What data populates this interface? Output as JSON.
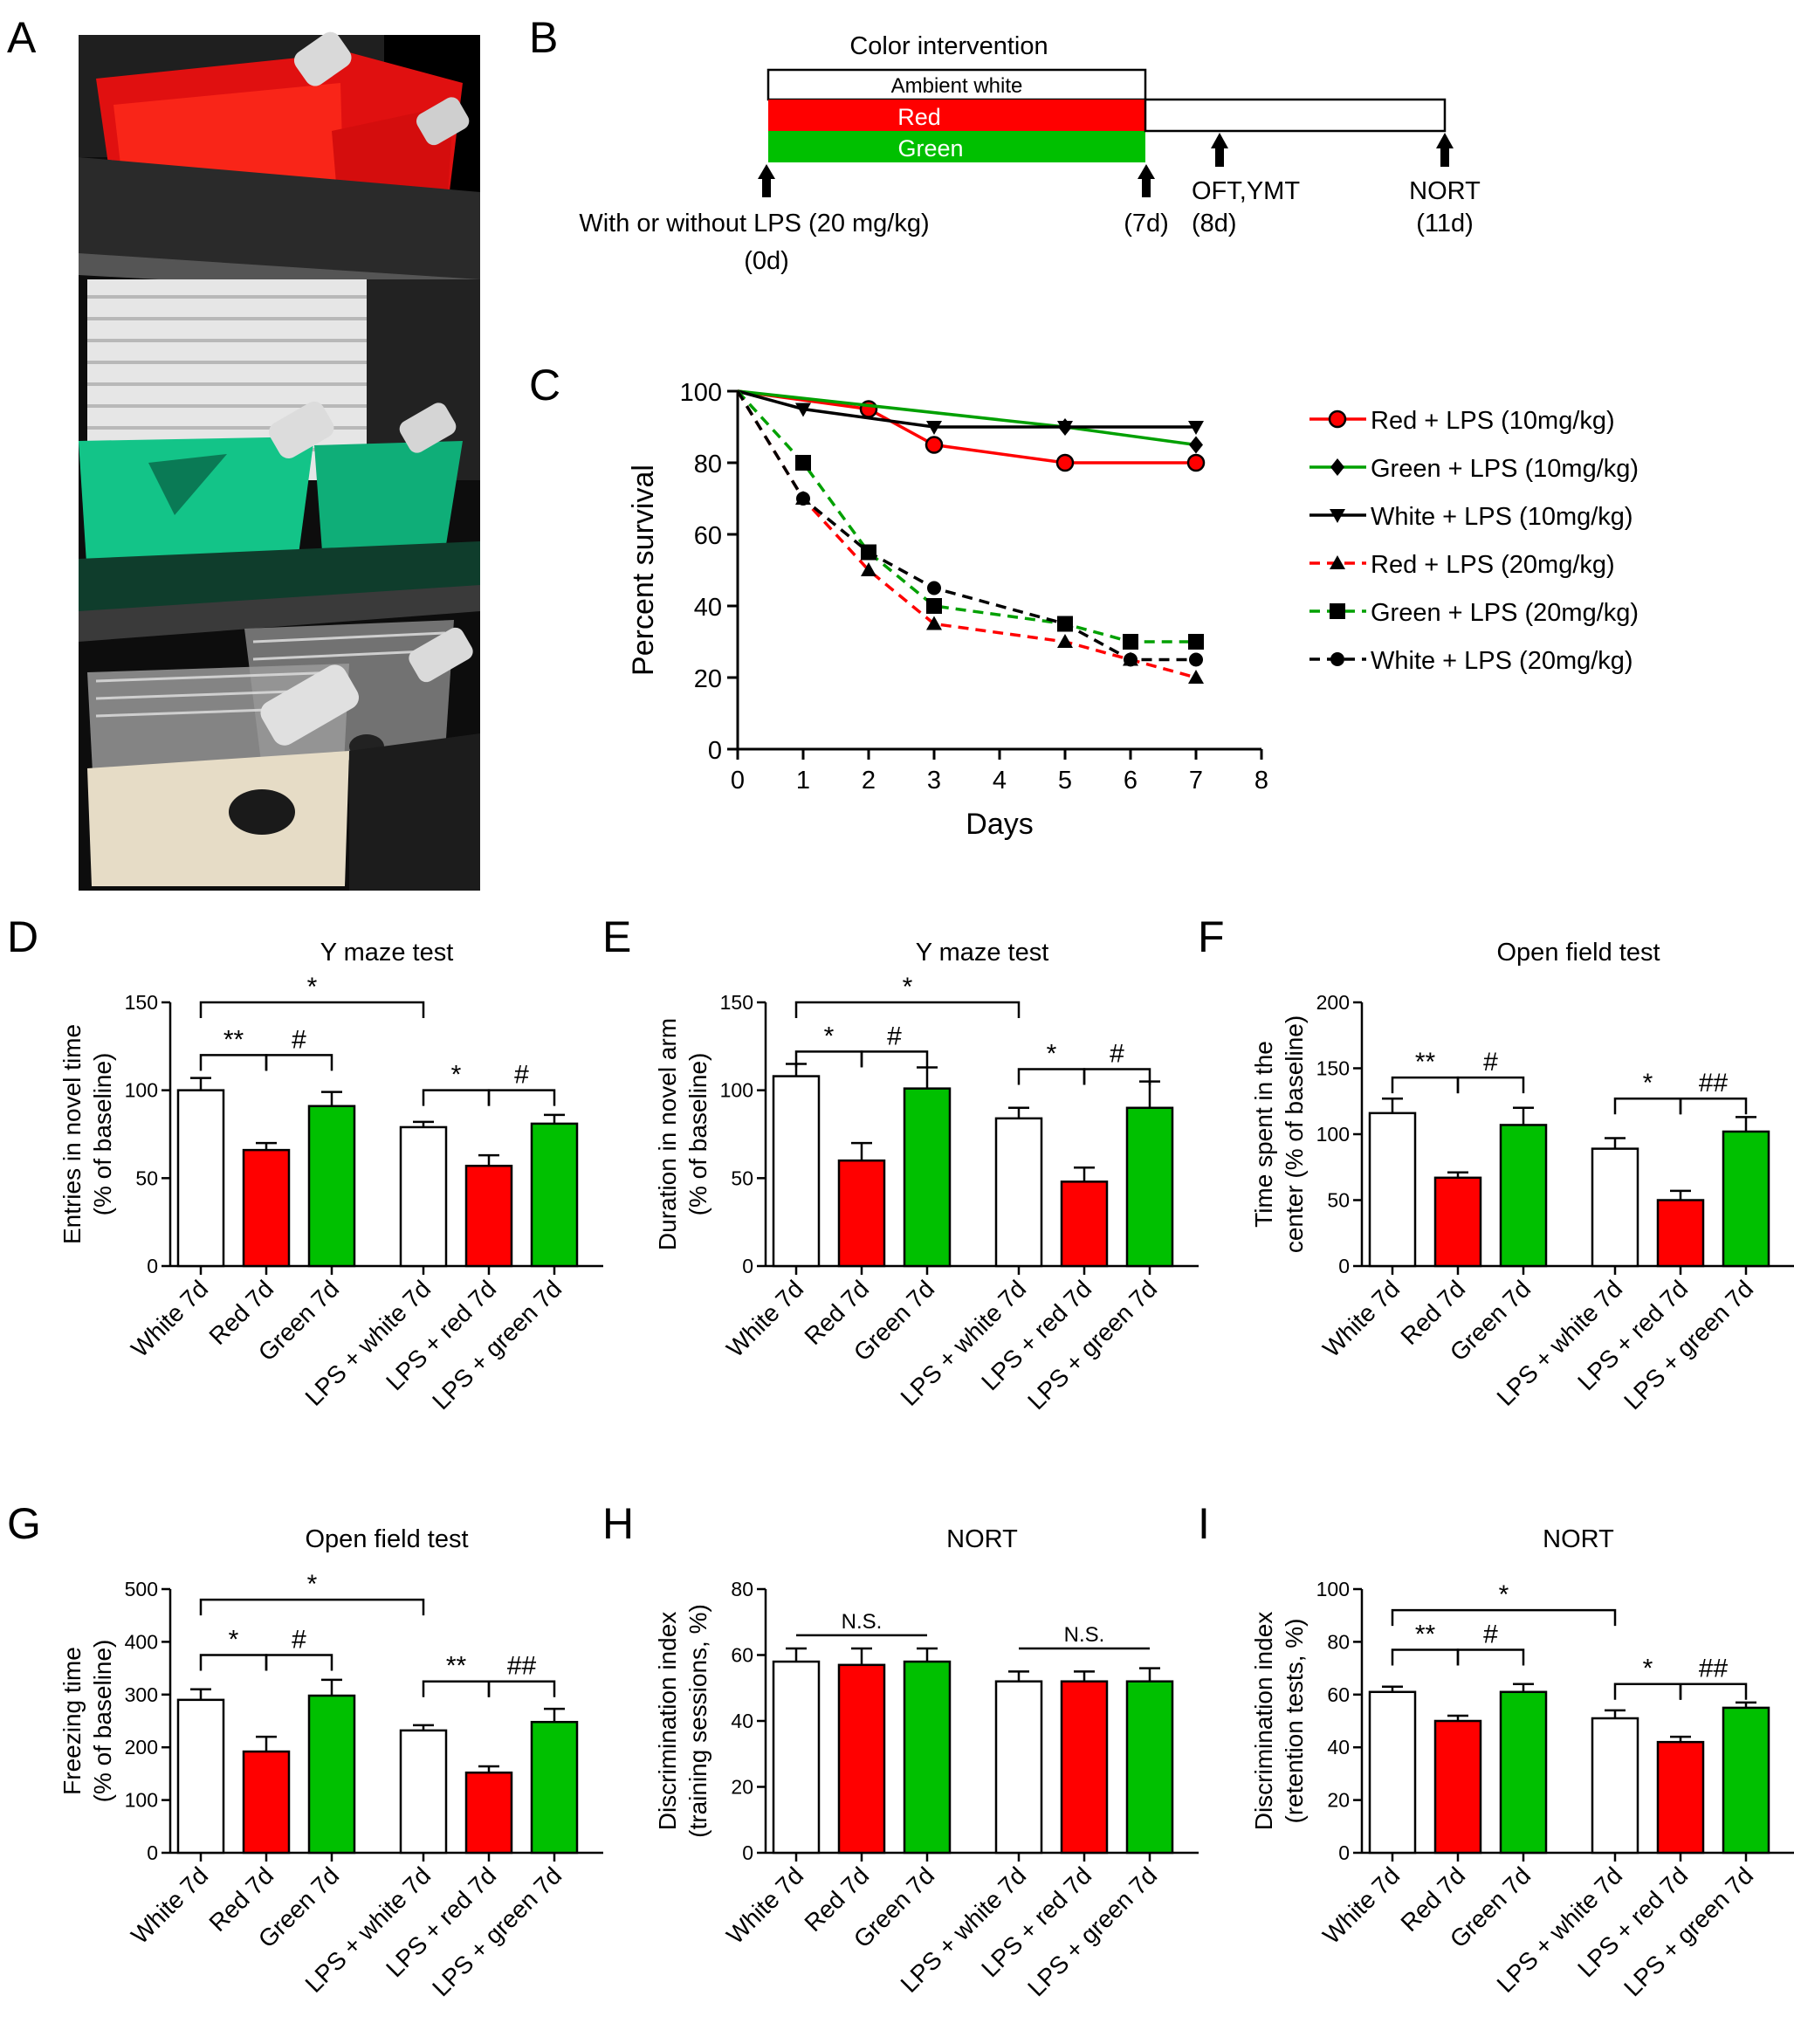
{
  "panel_letters": [
    "A",
    "B",
    "C",
    "D",
    "E",
    "F",
    "G",
    "H",
    "I"
  ],
  "colors": {
    "red": "#ff0000",
    "green": "#00c000",
    "white": "#ffffff",
    "black": "#000000",
    "photo_bg": "#1a1a1a"
  },
  "timeline": {
    "title": "Color intervention",
    "bars": [
      "Ambient white",
      "Red",
      "Green"
    ],
    "arrows": [
      {
        "label": "With or without LPS (20 mg/kg)",
        "day": "(0d)"
      },
      {
        "label": "",
        "day": "(7d)"
      },
      {
        "label": "OFT,YMT",
        "day": "(8d)"
      },
      {
        "label": "NORT",
        "day": "(11d)"
      }
    ]
  },
  "chart_data": [
    {
      "id": "C",
      "type": "line",
      "title": "",
      "xlabel": "Days",
      "ylabel": "Percent survival",
      "xlim": [
        0,
        8
      ],
      "ylim": [
        0,
        100
      ],
      "xticks": [
        "0",
        "1",
        "2",
        "3",
        "4",
        "5",
        "6",
        "7",
        "8"
      ],
      "yticks": [
        "0",
        "20",
        "40",
        "60",
        "80",
        "100"
      ],
      "legend_position": "right",
      "series": [
        {
          "name": "Red + LPS (10mg/kg)",
          "color": "#ff0000",
          "dash": false,
          "marker": "circle-red",
          "x": [
            0,
            2,
            3,
            5,
            7
          ],
          "y": [
            100,
            95,
            85,
            80,
            80
          ]
        },
        {
          "name": "Green + LPS (10mg/kg)",
          "color": "#00a000",
          "dash": false,
          "marker": "diamond",
          "x": [
            0,
            5,
            7
          ],
          "y": [
            100,
            90,
            85
          ]
        },
        {
          "name": "White + LPS (10mg/kg)",
          "color": "#000000",
          "dash": false,
          "marker": "triangle-down",
          "x": [
            0,
            1,
            3,
            5,
            7
          ],
          "y": [
            100,
            95,
            90,
            90,
            90
          ]
        },
        {
          "name": "Red + LPS (20mg/kg)",
          "color": "#ff0000",
          "dash": true,
          "marker": "triangle-up",
          "x": [
            0,
            1,
            2,
            3,
            5,
            6,
            7
          ],
          "y": [
            100,
            70,
            50,
            35,
            30,
            25,
            20
          ]
        },
        {
          "name": "Green + LPS (20mg/kg)",
          "color": "#00a000",
          "dash": true,
          "marker": "square",
          "x": [
            0,
            1,
            2,
            3,
            5,
            6,
            7
          ],
          "y": [
            100,
            80,
            55,
            40,
            35,
            30,
            30
          ]
        },
        {
          "name": "White + LPS (20mg/kg)",
          "color": "#000000",
          "dash": true,
          "marker": "circle",
          "x": [
            0,
            1,
            2,
            3,
            5,
            6,
            7
          ],
          "y": [
            100,
            70,
            55,
            45,
            35,
            25,
            25
          ]
        }
      ]
    },
    {
      "id": "D",
      "type": "bar",
      "title": "Y maze test",
      "ylabel": [
        "Entries in novel time",
        "(% of baseline)"
      ],
      "categories": [
        "White 7d",
        "Red 7d",
        "Green 7d",
        "LPS + white 7d",
        "LPS + red 7d",
        "LPS + green 7d"
      ],
      "values": [
        100,
        66,
        91,
        79,
        57,
        81
      ],
      "errors": [
        7,
        4,
        8,
        3,
        6,
        5
      ],
      "ylim": [
        0,
        150
      ],
      "yticks": [
        "0",
        "50",
        "100",
        "150"
      ],
      "annotations": [
        {
          "from": 0,
          "to": 3,
          "label": "*",
          "y": 150
        },
        {
          "from": 0,
          "to": 1,
          "label": "**",
          "y": 120
        },
        {
          "from": 1,
          "to": 2,
          "label": "#",
          "y": 120
        },
        {
          "from": 3,
          "to": 4,
          "label": "*",
          "y": 100
        },
        {
          "from": 4,
          "to": 5,
          "label": "#",
          "y": 100
        }
      ]
    },
    {
      "id": "E",
      "type": "bar",
      "title": "Y maze test",
      "ylabel": [
        "Duration in novel arm",
        "(% of baseline)"
      ],
      "categories": [
        "White 7d",
        "Red 7d",
        "Green 7d",
        "LPS + white 7d",
        "LPS + red 7d",
        "LPS + green 7d"
      ],
      "values": [
        108,
        60,
        101,
        84,
        48,
        90
      ],
      "errors": [
        7,
        10,
        12,
        6,
        8,
        15
      ],
      "ylim": [
        0,
        150
      ],
      "yticks": [
        "0",
        "50",
        "100",
        "150"
      ],
      "annotations": [
        {
          "from": 0,
          "to": 3,
          "label": "*",
          "y": 150
        },
        {
          "from": 0,
          "to": 1,
          "label": "*",
          "y": 122
        },
        {
          "from": 1,
          "to": 2,
          "label": "#",
          "y": 122
        },
        {
          "from": 3,
          "to": 4,
          "label": "*",
          "y": 112
        },
        {
          "from": 4,
          "to": 5,
          "label": "#",
          "y": 112
        }
      ]
    },
    {
      "id": "F",
      "type": "bar",
      "title": "Open field test",
      "ylabel": [
        "Time spent in the",
        "center (% of baseline)"
      ],
      "categories": [
        "White 7d",
        "Red 7d",
        "Green 7d",
        "LPS + white 7d",
        "LPS + red 7d",
        "LPS + green 7d"
      ],
      "values": [
        116,
        67,
        107,
        89,
        50,
        102
      ],
      "errors": [
        11,
        4,
        13,
        8,
        7,
        11
      ],
      "ylim": [
        0,
        200
      ],
      "yticks": [
        "0",
        "50",
        "100",
        "150",
        "200"
      ],
      "annotations": [
        {
          "from": 0,
          "to": 1,
          "label": "**",
          "y": 143
        },
        {
          "from": 1,
          "to": 2,
          "label": "#",
          "y": 143
        },
        {
          "from": 3,
          "to": 4,
          "label": "*",
          "y": 127
        },
        {
          "from": 4,
          "to": 5,
          "label": "##",
          "y": 127
        }
      ]
    },
    {
      "id": "G",
      "type": "bar",
      "title": "Open field test",
      "ylabel": [
        "Freezing time",
        "(% of baseline)"
      ],
      "categories": [
        "White 7d",
        "Red 7d",
        "Green 7d",
        "LPS + white 7d",
        "LPS + red 7d",
        "LPS + green 7d"
      ],
      "values": [
        290,
        192,
        298,
        232,
        152,
        248
      ],
      "errors": [
        20,
        28,
        30,
        10,
        12,
        25
      ],
      "ylim": [
        0,
        500
      ],
      "yticks": [
        "0",
        "100",
        "200",
        "300",
        "400",
        "500"
      ],
      "annotations": [
        {
          "from": 0,
          "to": 3,
          "label": "*",
          "y": 480
        },
        {
          "from": 0,
          "to": 1,
          "label": "*",
          "y": 375
        },
        {
          "from": 1,
          "to": 2,
          "label": "#",
          "y": 375
        },
        {
          "from": 3,
          "to": 4,
          "label": "**",
          "y": 325
        },
        {
          "from": 4,
          "to": 5,
          "label": "##",
          "y": 325
        }
      ]
    },
    {
      "id": "H",
      "type": "bar",
      "title": "NORT",
      "ylabel": [
        "Discrimination index",
        "(training sessions, %)"
      ],
      "categories": [
        "White 7d",
        "Red 7d",
        "Green 7d",
        "LPS + white 7d",
        "LPS + red 7d",
        "LPS + green 7d"
      ],
      "values": [
        58,
        57,
        58,
        52,
        52,
        52
      ],
      "errors": [
        4,
        5,
        4,
        3,
        3,
        4
      ],
      "ylim": [
        0,
        80
      ],
      "yticks": [
        "0",
        "20",
        "40",
        "60",
        "80"
      ],
      "annotations": [
        {
          "from": 0,
          "to": 2,
          "label": "N.S.",
          "y": 66,
          "flat": true
        },
        {
          "from": 3,
          "to": 5,
          "label": "N.S.",
          "y": 62,
          "flat": true
        }
      ]
    },
    {
      "id": "I",
      "type": "bar",
      "title": "NORT",
      "ylabel": [
        "Discrimination index",
        "(retention tests, %)"
      ],
      "categories": [
        "White 7d",
        "Red 7d",
        "Green 7d",
        "LPS + white 7d",
        "LPS + red 7d",
        "LPS + green 7d"
      ],
      "values": [
        61,
        50,
        61,
        51,
        42,
        55
      ],
      "errors": [
        2,
        2,
        3,
        3,
        2,
        2
      ],
      "ylim": [
        0,
        100
      ],
      "yticks": [
        "0",
        "20",
        "40",
        "60",
        "80",
        "100"
      ],
      "annotations": [
        {
          "from": 0,
          "to": 3,
          "label": "*",
          "y": 92
        },
        {
          "from": 0,
          "to": 1,
          "label": "**",
          "y": 77
        },
        {
          "from": 1,
          "to": 2,
          "label": "#",
          "y": 77
        },
        {
          "from": 3,
          "to": 4,
          "label": "*",
          "y": 64
        },
        {
          "from": 4,
          "to": 5,
          "label": "##",
          "y": 64
        }
      ]
    }
  ]
}
